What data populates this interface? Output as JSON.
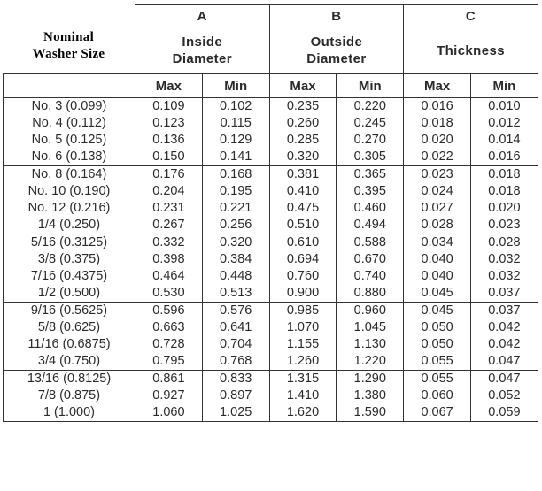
{
  "header": {
    "nominal": "Nominal Washer Size",
    "groups": [
      {
        "letter": "A",
        "title": "Inside Diameter"
      },
      {
        "letter": "B",
        "title": "Outside Diameter"
      },
      {
        "letter": "C",
        "title": "Thickness"
      }
    ],
    "max": "Max",
    "min": "Min"
  },
  "groups": [
    {
      "rows": [
        {
          "size": "No. 3 (0.099)",
          "a_max": "0.109",
          "a_min": "0.102",
          "b_max": "0.235",
          "b_min": "0.220",
          "c_max": "0.016",
          "c_min": "0.010"
        },
        {
          "size": "No. 4 (0.112)",
          "a_max": "0.123",
          "a_min": "0.115",
          "b_max": "0.260",
          "b_min": "0.245",
          "c_max": "0.018",
          "c_min": "0.012"
        },
        {
          "size": "No. 5 (0.125)",
          "a_max": "0.136",
          "a_min": "0.129",
          "b_max": "0.285",
          "b_min": "0.270",
          "c_max": "0.020",
          "c_min": "0.014"
        },
        {
          "size": "No. 6 (0.138)",
          "a_max": "0.150",
          "a_min": "0.141",
          "b_max": "0.320",
          "b_min": "0.305",
          "c_max": "0.022",
          "c_min": "0.016"
        }
      ]
    },
    {
      "rows": [
        {
          "size": "No. 8 (0.164)",
          "a_max": "0.176",
          "a_min": "0.168",
          "b_max": "0.381",
          "b_min": "0.365",
          "c_max": "0.023",
          "c_min": "0.018"
        },
        {
          "size": "No. 10 (0.190)",
          "a_max": "0.204",
          "a_min": "0.195",
          "b_max": "0.410",
          "b_min": "0.395",
          "c_max": "0.024",
          "c_min": "0.018"
        },
        {
          "size": "No. 12 (0.216)",
          "a_max": "0.231",
          "a_min": "0.221",
          "b_max": "0.475",
          "b_min": "0.460",
          "c_max": "0.027",
          "c_min": "0.020"
        },
        {
          "size": "1/4 (0.250)",
          "a_max": "0.267",
          "a_min": "0.256",
          "b_max": "0.510",
          "b_min": "0.494",
          "c_max": "0.028",
          "c_min": "0.023"
        }
      ]
    },
    {
      "rows": [
        {
          "size": "5/16 (0.3125)",
          "a_max": "0.332",
          "a_min": "0.320",
          "b_max": "0.610",
          "b_min": "0.588",
          "c_max": "0.034",
          "c_min": "0.028"
        },
        {
          "size": "3/8 (0.375)",
          "a_max": "0.398",
          "a_min": "0.384",
          "b_max": "0.694",
          "b_min": "0.670",
          "c_max": "0.040",
          "c_min": "0.032"
        },
        {
          "size": "7/16 (0.4375)",
          "a_max": "0.464",
          "a_min": "0.448",
          "b_max": "0.760",
          "b_min": "0.740",
          "c_max": "0.040",
          "c_min": "0.032"
        },
        {
          "size": "1/2 (0.500)",
          "a_max": "0.530",
          "a_min": "0.513",
          "b_max": "0.900",
          "b_min": "0.880",
          "c_max": "0.045",
          "c_min": "0.037"
        }
      ]
    },
    {
      "rows": [
        {
          "size": "9/16 (0.5625)",
          "a_max": "0.596",
          "a_min": "0.576",
          "b_max": "0.985",
          "b_min": "0.960",
          "c_max": "0.045",
          "c_min": "0.037"
        },
        {
          "size": "5/8 (0.625)",
          "a_max": "0.663",
          "a_min": "0.641",
          "b_max": "1.070",
          "b_min": "1.045",
          "c_max": "0.050",
          "c_min": "0.042"
        },
        {
          "size": "11/16 (0.6875)",
          "a_max": "0.728",
          "a_min": "0.704",
          "b_max": "1.155",
          "b_min": "1.130",
          "c_max": "0.050",
          "c_min": "0.042"
        },
        {
          "size": "3/4 (0.750)",
          "a_max": "0.795",
          "a_min": "0.768",
          "b_max": "1.260",
          "b_min": "1.220",
          "c_max": "0.055",
          "c_min": "0.047"
        }
      ]
    },
    {
      "rows": [
        {
          "size": "13/16 (0.8125)",
          "a_max": "0.861",
          "a_min": "0.833",
          "b_max": "1.315",
          "b_min": "1.290",
          "c_max": "0.055",
          "c_min": "0.047"
        },
        {
          "size": "7/8 (0.875)",
          "a_max": "0.927",
          "a_min": "0.897",
          "b_max": "1.410",
          "b_min": "1.380",
          "c_max": "0.060",
          "c_min": "0.052"
        },
        {
          "size": "1 (1.000)",
          "a_max": "1.060",
          "a_min": "1.025",
          "b_max": "1.620",
          "b_min": "1.590",
          "c_max": "0.067",
          "c_min": "0.059"
        }
      ]
    }
  ]
}
